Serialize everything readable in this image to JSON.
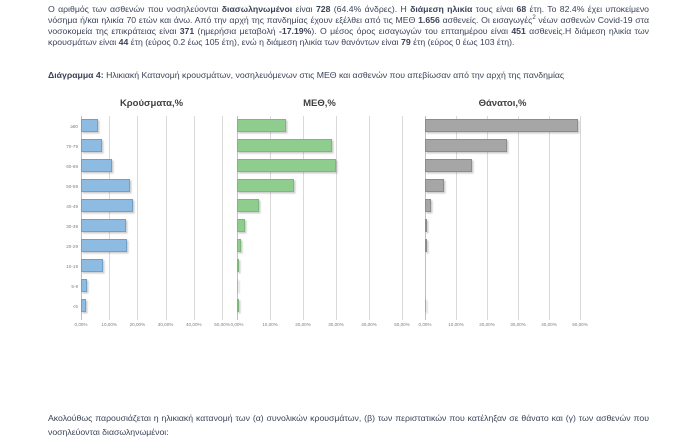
{
  "document": {
    "summary_segments": [
      {
        "t": "Ο αριθμός των ασθενών που νοσηλεύονται "
      },
      {
        "t": "διασωληνωμένοι",
        "b": true
      },
      {
        "t": " είναι "
      },
      {
        "t": "728",
        "b": true
      },
      {
        "t": " (64.4% άνδρες). Η "
      },
      {
        "t": "διάμεση ηλικία",
        "b": true
      },
      {
        "t": " τους είναι "
      },
      {
        "t": "68",
        "b": true
      },
      {
        "t": " έτη. Το 82.4% έχει υποκείμενο νόσημα ή/και ηλικία 70 ετών και άνω. Από την αρχή της πανδημίας έχουν εξέλθει από τις ΜΕΘ "
      },
      {
        "t": "1.656",
        "b": true
      },
      {
        "t": " ασθενείς. Οι εισαγωγές"
      },
      {
        "t": "2",
        "sup": true
      },
      {
        "t": " νέων ασθενών Covid-19 στα νοσοκομεία της επικράτειας είναι "
      },
      {
        "t": "371",
        "b": true
      },
      {
        "t": " (ημερήσια μεταβολή "
      },
      {
        "t": "-17.19%",
        "b": true
      },
      {
        "t": "). Ο μέσος όρος εισαγωγών του επταημέρου είναι "
      },
      {
        "t": "451",
        "b": true
      },
      {
        "t": " ασθενείς.Η διάμεση ηλικία των κρουσμάτων είναι "
      },
      {
        "t": "44",
        "b": true
      },
      {
        "t": " έτη (εύρος 0.2 έως 105 έτη), ενώ η διάμεση ηλικία των θανόντων είναι "
      },
      {
        "t": "79",
        "b": true
      },
      {
        "t": " έτη (εύρος 0 έως 103 έτη)."
      }
    ],
    "figure_caption_label": "Διάγραμμα 4:",
    "figure_caption_text": " Ηλικιακή Κατανομή κρουσμάτων, νοσηλευόμενων στις ΜΕΘ και ασθενών που απεβίωσαν από την αρχή της πανδημίας",
    "footer_text": "Ακολούθως παρουσιάζεται η ηλικιακή κατανομή των (α) συνολικών κρουσμάτων, (β) των περιστατικών που κατέληξαν σε θάνατο και (γ) των ασθενών που νοσηλεύονται διασωληνωμένοι:"
  },
  "chart_data": [
    {
      "type": "bar",
      "orientation": "horizontal",
      "title": "Κρούσματα,%",
      "categories": [
        "≥80",
        "70-79",
        "60-69",
        "50-59",
        "40-49",
        "30-39",
        "20-29",
        "10-19",
        "5-9",
        "<5"
      ],
      "values": [
        6.2,
        7.3,
        11.0,
        17.4,
        18.6,
        16.1,
        16.3,
        7.9,
        2.0,
        1.9
      ],
      "xlim": [
        0,
        50
      ],
      "x_ticks": [
        "0,00%",
        "10,00%",
        "20,00%",
        "30,00%",
        "40,00%",
        "50,00%"
      ],
      "grid": true,
      "legend": "none",
      "bar_color": "#8DBBE2",
      "bar_border": "#6FA0C8"
    },
    {
      "type": "bar",
      "orientation": "horizontal",
      "title": "ΜΕΘ,%",
      "categories": [
        "≥80",
        "70-79",
        "60-69",
        "50-59",
        "40-49",
        "30-39",
        "20-29",
        "10-19",
        "5-9",
        "<5"
      ],
      "values": [
        14.8,
        28.9,
        30.1,
        17.3,
        6.7,
        2.5,
        1.3,
        0.2,
        0.1,
        0.3
      ],
      "xlim": [
        0,
        50
      ],
      "x_ticks": [
        "0,00%",
        "10,00%",
        "20,00%",
        "30,00%",
        "40,00%",
        "50,00%"
      ],
      "grid": true,
      "legend": "none",
      "bar_color": "#8FCD8F",
      "bar_border": "#79B979"
    },
    {
      "type": "bar",
      "orientation": "horizontal",
      "title": "Θάνατοι,%",
      "categories": [
        "≥80",
        "70-79",
        "60-69",
        "50-59",
        "40-49",
        "30-39",
        "20-29",
        "10-19",
        "5-9",
        "<5"
      ],
      "values": [
        49.4,
        26.6,
        15.2,
        6.1,
        1.9,
        0.7,
        0.2,
        0.0,
        0.0,
        0.1
      ],
      "xlim": [
        0,
        50
      ],
      "x_ticks": [
        "0,00%",
        "10,00%",
        "20,00%",
        "30,00%",
        "40,00%",
        "50,00%"
      ],
      "grid": true,
      "legend": "none",
      "bar_color": "#A6A6A6",
      "bar_border": "#8C8C8C"
    }
  ]
}
